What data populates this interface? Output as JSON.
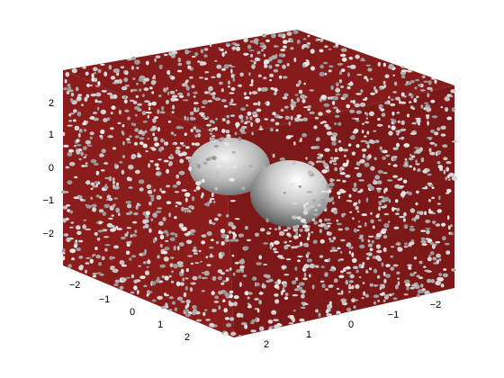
{
  "figure": {
    "type": "3d-isosurface",
    "face_color": "#8b1a1a",
    "surface_color": "#b8b8b8",
    "background": "#ffffff"
  },
  "axes": {
    "z_ticks": [
      "2",
      "1",
      "0",
      "−1",
      "−2"
    ],
    "left_ticks": [
      "−2",
      "−1",
      "0",
      "1",
      "2"
    ],
    "right_ticks": [
      "2",
      "1",
      "0",
      "−1",
      "−2"
    ]
  }
}
